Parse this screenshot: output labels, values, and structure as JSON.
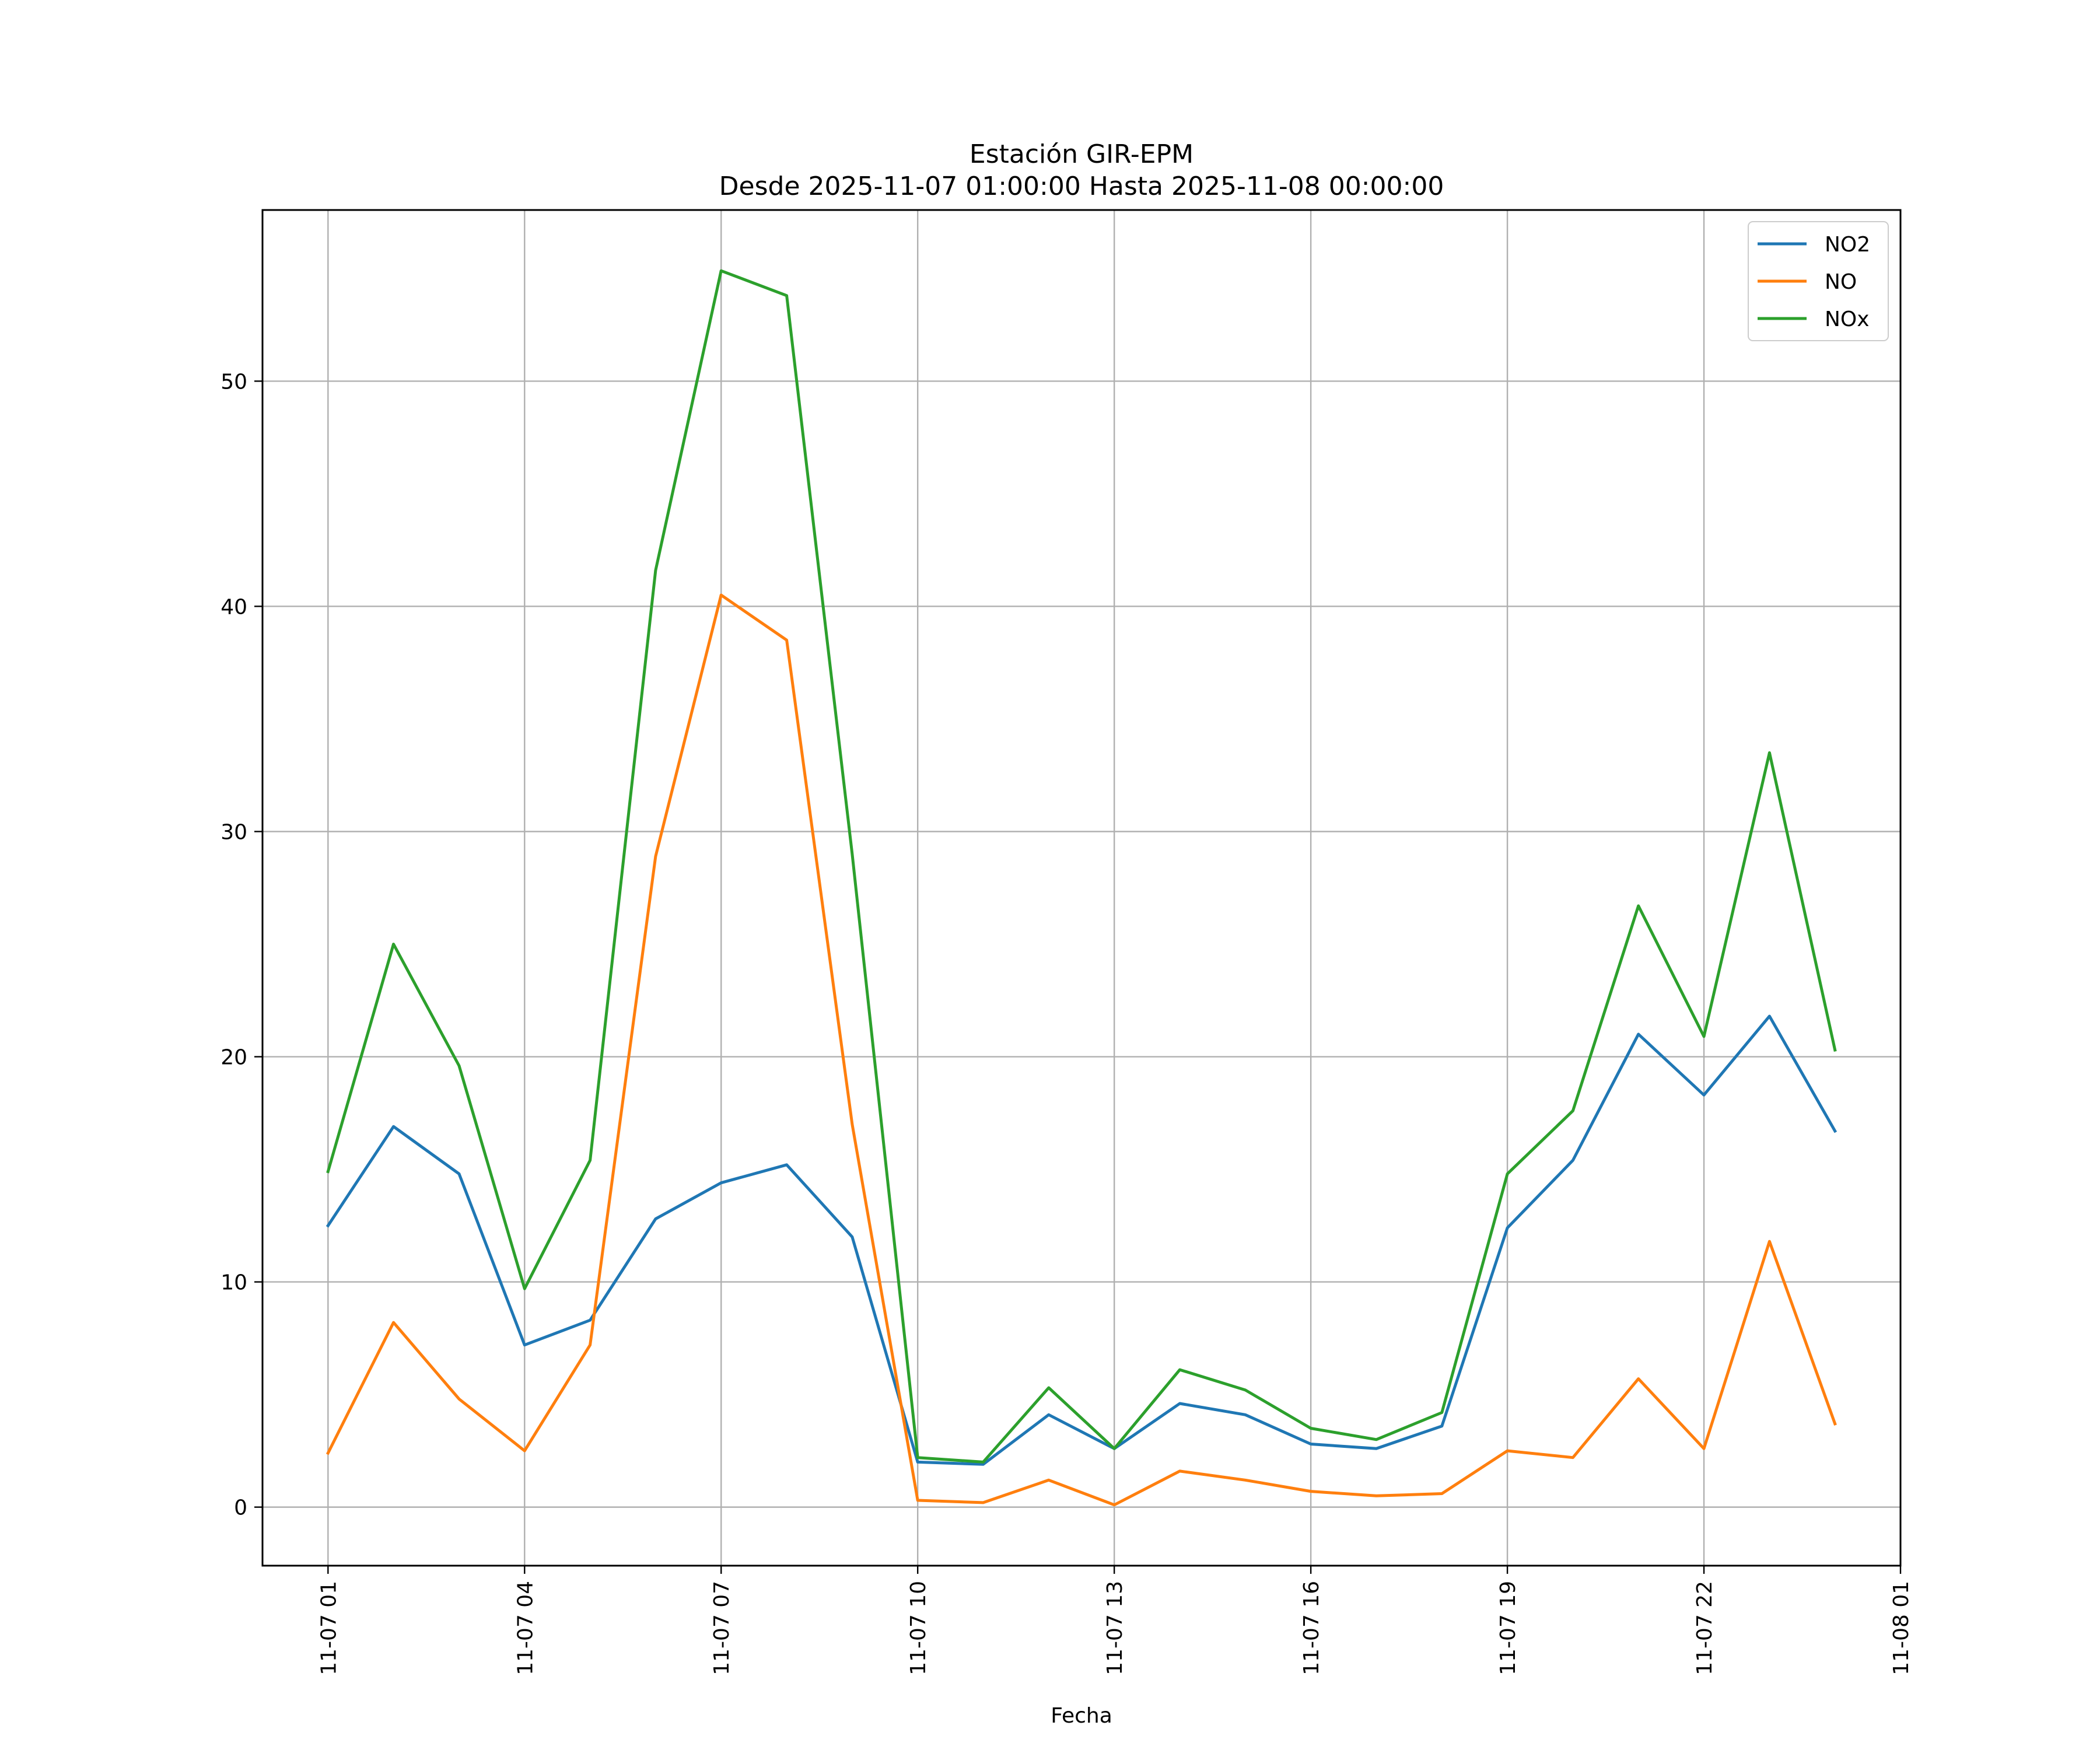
{
  "chart_data": {
    "type": "line",
    "title": "Estación GIR-EPM",
    "subtitle": "Desde 2025-11-07 01:00:00 Hasta 2025-11-08 00:00:00",
    "xlabel": "Fecha",
    "ylabel": "",
    "x": [
      "2025-11-07 01:00",
      "2025-11-07 02:00",
      "2025-11-07 03:00",
      "2025-11-07 04:00",
      "2025-11-07 05:00",
      "2025-11-07 06:00",
      "2025-11-07 07:00",
      "2025-11-07 08:00",
      "2025-11-07 09:00",
      "2025-11-07 10:00",
      "2025-11-07 11:00",
      "2025-11-07 12:00",
      "2025-11-07 13:00",
      "2025-11-07 14:00",
      "2025-11-07 15:00",
      "2025-11-07 16:00",
      "2025-11-07 17:00",
      "2025-11-07 18:00",
      "2025-11-07 19:00",
      "2025-11-07 20:00",
      "2025-11-07 21:00",
      "2025-11-07 22:00",
      "2025-11-07 23:00",
      "2025-11-08 00:00"
    ],
    "x_ticks": [
      "11-07 01",
      "11-07 04",
      "11-07 07",
      "11-07 10",
      "11-07 13",
      "11-07 16",
      "11-07 19",
      "11-07 22",
      "11-08 01"
    ],
    "y_ticks": [
      0,
      10,
      20,
      30,
      40,
      50
    ],
    "xlim": [
      "2025-11-07 00:00:00",
      "2025-11-08 01:00:00"
    ],
    "ylim": [
      -2.6,
      57.6
    ],
    "grid": true,
    "legend_position": "top-right",
    "series": [
      {
        "name": "NO2",
        "color": "#1f77b4",
        "values": [
          12.5,
          16.9,
          14.8,
          7.2,
          8.3,
          12.8,
          14.4,
          15.2,
          12.0,
          2.0,
          1.9,
          4.1,
          2.6,
          4.6,
          4.1,
          2.8,
          2.6,
          3.6,
          12.4,
          15.4,
          21.0,
          18.3,
          21.8,
          16.7
        ]
      },
      {
        "name": "NO",
        "color": "#ff7f0e",
        "values": [
          2.4,
          8.2,
          4.8,
          2.5,
          7.2,
          28.9,
          40.5,
          38.5,
          17.0,
          0.3,
          0.2,
          1.2,
          0.1,
          1.6,
          1.2,
          0.7,
          0.5,
          0.6,
          2.5,
          2.2,
          5.7,
          2.6,
          11.8,
          3.7
        ]
      },
      {
        "name": "NOx",
        "color": "#2ca02c",
        "values": [
          14.9,
          25.0,
          19.6,
          9.7,
          15.4,
          41.6,
          54.9,
          53.8,
          29.0,
          2.2,
          2.0,
          5.3,
          2.6,
          6.1,
          5.2,
          3.5,
          3.0,
          4.2,
          14.8,
          17.6,
          26.7,
          20.9,
          33.5,
          20.3
        ]
      }
    ]
  }
}
